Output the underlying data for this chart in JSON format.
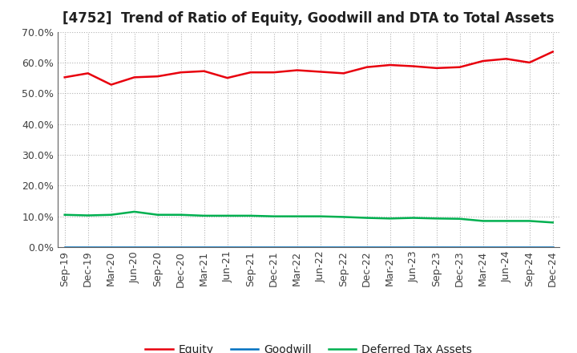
{
  "title": "[4752]  Trend of Ratio of Equity, Goodwill and DTA to Total Assets",
  "x_labels": [
    "Sep-19",
    "Dec-19",
    "Mar-20",
    "Jun-20",
    "Sep-20",
    "Dec-20",
    "Mar-21",
    "Jun-21",
    "Sep-21",
    "Dec-21",
    "Mar-22",
    "Jun-22",
    "Sep-22",
    "Dec-22",
    "Mar-23",
    "Jun-23",
    "Sep-23",
    "Dec-23",
    "Mar-24",
    "Jun-24",
    "Sep-24",
    "Dec-24"
  ],
  "equity": [
    55.2,
    56.5,
    52.8,
    55.2,
    55.5,
    56.8,
    57.2,
    55.0,
    56.8,
    56.8,
    57.5,
    57.0,
    56.5,
    58.5,
    59.2,
    58.8,
    58.2,
    58.5,
    60.5,
    61.2,
    60.0,
    63.5
  ],
  "goodwill": [
    0.0,
    0.0,
    0.0,
    0.0,
    0.0,
    0.0,
    0.0,
    0.0,
    0.0,
    0.0,
    0.0,
    0.0,
    0.0,
    0.0,
    0.0,
    0.0,
    0.0,
    0.0,
    0.0,
    0.0,
    0.0,
    0.0
  ],
  "dta": [
    10.5,
    10.3,
    10.5,
    11.5,
    10.5,
    10.5,
    10.2,
    10.2,
    10.2,
    10.0,
    10.0,
    10.0,
    9.8,
    9.5,
    9.3,
    9.5,
    9.3,
    9.2,
    8.5,
    8.5,
    8.5,
    8.0
  ],
  "equity_color": "#e8000d",
  "goodwill_color": "#0070c0",
  "dta_color": "#00b050",
  "background_color": "#ffffff",
  "grid_color": "#aaaaaa",
  "ylim": [
    0,
    70
  ],
  "yticks": [
    0,
    10,
    20,
    30,
    40,
    50,
    60,
    70
  ],
  "title_fontsize": 12,
  "tick_fontsize": 9,
  "legend_fontsize": 10
}
